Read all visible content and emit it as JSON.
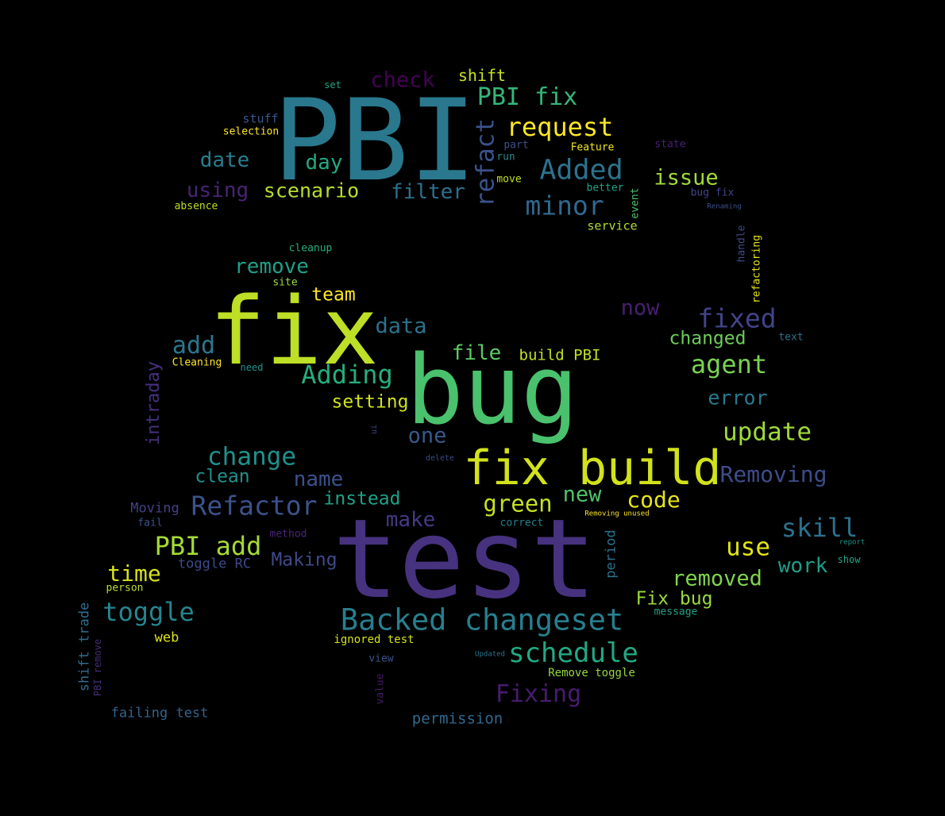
{
  "background": "#000000",
  "words": [
    {
      "text": "PBI",
      "color": "#2a788e"
    },
    {
      "text": "fix",
      "color": "#bddf26"
    },
    {
      "text": "bug",
      "color": "#4ac16d"
    },
    {
      "text": "test",
      "color": "#46327e"
    },
    {
      "text": "fix build",
      "color": "#d2e21b"
    },
    {
      "text": "Backed changeset",
      "color": "#277f8e"
    },
    {
      "text": "schedule",
      "color": "#22a884"
    },
    {
      "text": "Refactor",
      "color": "#3b528b"
    },
    {
      "text": "toggle",
      "color": "#25858e"
    },
    {
      "text": "PBI add",
      "color": "#a5db36"
    },
    {
      "text": "change",
      "color": "#21918c"
    },
    {
      "text": "Adding",
      "color": "#26ad81"
    },
    {
      "text": "fixed",
      "color": "#414487"
    },
    {
      "text": "agent",
      "color": "#7ad151"
    },
    {
      "text": "update",
      "color": "#9fda3a"
    },
    {
      "text": "Removing",
      "color": "#3e4c8a"
    },
    {
      "text": "Added",
      "color": "#2c728e"
    },
    {
      "text": "minor",
      "color": "#31688e"
    },
    {
      "text": "request",
      "color": "#fde725"
    },
    {
      "text": "PBI fix",
      "color": "#35b779"
    },
    {
      "text": "refact",
      "color": "#3b528b"
    },
    {
      "text": "check",
      "color": "#440154"
    },
    {
      "text": "shift",
      "color": "#c8e020"
    },
    {
      "text": "scenario",
      "color": "#b5de2b"
    },
    {
      "text": "filter",
      "color": "#2d708e"
    },
    {
      "text": "using",
      "color": "#482475"
    },
    {
      "text": "date",
      "color": "#287d8e"
    },
    {
      "text": "day",
      "color": "#23a983"
    },
    {
      "text": "issue",
      "color": "#a0da39"
    },
    {
      "text": "remove",
      "color": "#1fa088"
    },
    {
      "text": "team",
      "color": "#fde725"
    },
    {
      "text": "add",
      "color": "#2a788e"
    },
    {
      "text": "data",
      "color": "#2c728e"
    },
    {
      "text": "file",
      "color": "#5ec962"
    },
    {
      "text": "build PBI",
      "color": "#c2df23"
    },
    {
      "text": "now",
      "color": "#481f70"
    },
    {
      "text": "changed",
      "color": "#6ccd5a"
    },
    {
      "text": "error",
      "color": "#2a788e"
    },
    {
      "text": "setting",
      "color": "#d0e11c"
    },
    {
      "text": "one",
      "color": "#38598c"
    },
    {
      "text": "name",
      "color": "#3b528b"
    },
    {
      "text": "clean",
      "color": "#21918c"
    },
    {
      "text": "instead",
      "color": "#1fa187"
    },
    {
      "text": "green",
      "color": "#c5e021"
    },
    {
      "text": "new",
      "color": "#4ec36b"
    },
    {
      "text": "code",
      "color": "#e5e419"
    },
    {
      "text": "skill",
      "color": "#2c728e"
    },
    {
      "text": "use",
      "color": "#e2e418"
    },
    {
      "text": "work",
      "color": "#1f9e89"
    },
    {
      "text": "removed",
      "color": "#7fd34e"
    },
    {
      "text": "Fix bug",
      "color": "#9bd93c"
    },
    {
      "text": "make",
      "color": "#443a83"
    },
    {
      "text": "Making",
      "color": "#3e4a89"
    },
    {
      "text": "time",
      "color": "#d8e219"
    },
    {
      "text": "Fixing",
      "color": "#481c6e"
    },
    {
      "text": "permission",
      "color": "#31688e"
    },
    {
      "text": "failing test",
      "color": "#33638d"
    },
    {
      "text": "toggle RC",
      "color": "#3e4989"
    },
    {
      "text": "Moving",
      "color": "#424086"
    },
    {
      "text": "intraday",
      "color": "#46307e"
    },
    {
      "text": "shift trade",
      "color": "#2f6c8e"
    },
    {
      "text": "PBI remove",
      "color": "#472c7a"
    },
    {
      "text": "period",
      "color": "#2e6f8e"
    },
    {
      "text": "web",
      "color": "#dde318"
    },
    {
      "text": "person",
      "color": "#b8de29"
    },
    {
      "text": "fail",
      "color": "#3a548c"
    },
    {
      "text": "ignored test",
      "color": "#d5e21a"
    },
    {
      "text": "view",
      "color": "#39558c"
    },
    {
      "text": "value",
      "color": "#481769"
    },
    {
      "text": "Remove toggle",
      "color": "#95d840"
    },
    {
      "text": "Updated",
      "color": "#2a768e"
    },
    {
      "text": "message",
      "color": "#1fa188"
    },
    {
      "text": "correct",
      "color": "#27808e"
    },
    {
      "text": "Removing unused",
      "color": "#fde725"
    },
    {
      "text": "delete",
      "color": "#3d4e8a"
    },
    {
      "text": "method",
      "color": "#482576"
    },
    {
      "text": "ui",
      "color": "#404688"
    },
    {
      "text": "show",
      "color": "#20a486"
    },
    {
      "text": "report",
      "color": "#1e9b8a"
    },
    {
      "text": "text",
      "color": "#2d718e"
    },
    {
      "text": "need",
      "color": "#20928c"
    },
    {
      "text": "Cleaning",
      "color": "#fde725"
    },
    {
      "text": "site",
      "color": "#9dd93b"
    },
    {
      "text": "cleanup",
      "color": "#25ac82"
    },
    {
      "text": "absence",
      "color": "#c0df25"
    },
    {
      "text": "selection",
      "color": "#fde725"
    },
    {
      "text": "stuff",
      "color": "#39568c"
    },
    {
      "text": "set",
      "color": "#22a785"
    },
    {
      "text": "part",
      "color": "#3b518b"
    },
    {
      "text": "run",
      "color": "#23898e"
    },
    {
      "text": "move",
      "color": "#c2df23"
    },
    {
      "text": "Feature",
      "color": "#f1e51d"
    },
    {
      "text": "better",
      "color": "#20a386"
    },
    {
      "text": "event",
      "color": "#4ac16d"
    },
    {
      "text": "service",
      "color": "#b2dd2d"
    },
    {
      "text": "state",
      "color": "#482173"
    },
    {
      "text": "bug fix",
      "color": "#414487"
    },
    {
      "text": "Renaming",
      "color": "#3b528b"
    },
    {
      "text": "handle",
      "color": "#3e4a89"
    },
    {
      "text": "refactoring",
      "color": "#e7e419"
    }
  ]
}
